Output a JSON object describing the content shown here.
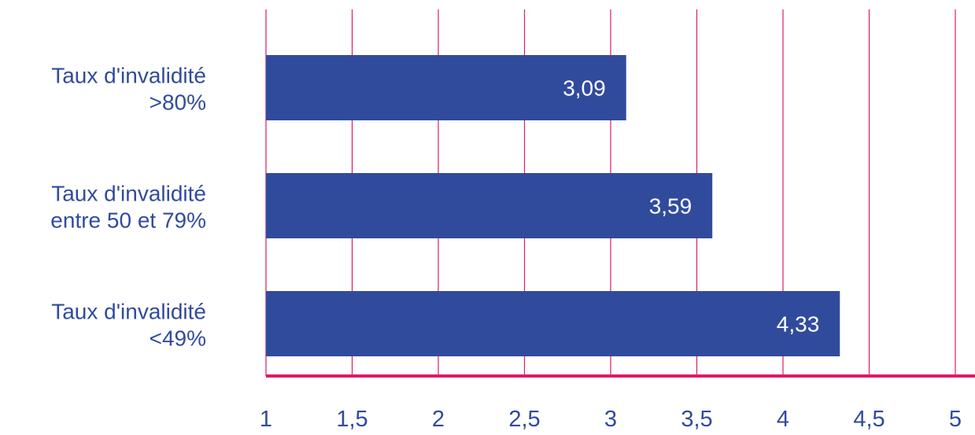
{
  "chart_data": {
    "type": "bar",
    "orientation": "horizontal",
    "categories": [
      [
        "Taux d'invalidité",
        ">80%"
      ],
      [
        "Taux d'invalidité",
        "entre 50 et 79%"
      ],
      [
        "Taux d'invalidité",
        "<49%"
      ]
    ],
    "values": [
      3.09,
      3.59,
      4.33
    ],
    "data_labels": [
      "3,09",
      "3,59",
      "4,33"
    ],
    "xlim": [
      1,
      5
    ],
    "xticks": [
      1,
      1.5,
      2,
      2.5,
      3,
      3.5,
      4,
      4.5,
      5
    ],
    "xtick_labels": [
      "1",
      "1,5",
      "2",
      "2,5",
      "3",
      "3,5",
      "4",
      "4,5",
      "5"
    ],
    "grid": true,
    "legend": "none",
    "colors": {
      "bar": "#314b9c",
      "grid": "#e0196a",
      "axis": "#e0196a",
      "text": "#314b9c",
      "data_label": "#ffffff"
    }
  }
}
